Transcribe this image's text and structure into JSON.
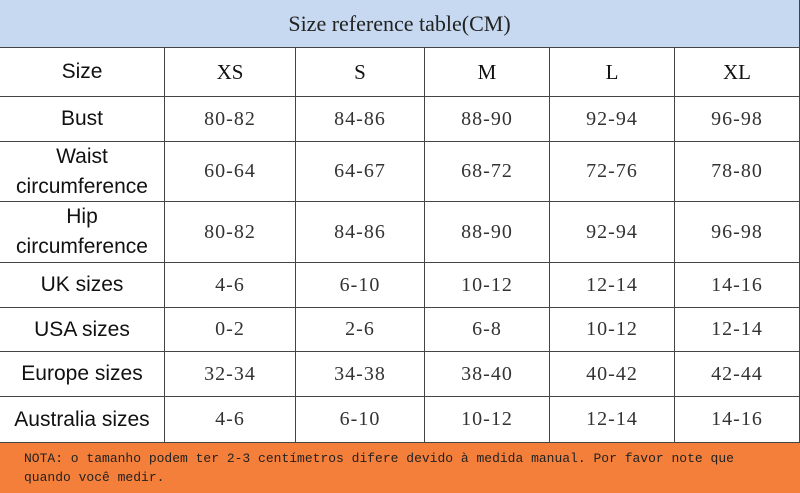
{
  "title": "Size reference table(CM)",
  "header": [
    "Size",
    "XS",
    "S",
    "M",
    "L",
    "XL"
  ],
  "rows": [
    [
      "Bust",
      "80-82",
      "84-86",
      "88-90",
      "92-94",
      "96-98"
    ],
    [
      "Waist circumference",
      "60-64",
      "64-67",
      "68-72",
      "72-76",
      "78-80"
    ],
    [
      "Hip circumference",
      "80-82",
      "84-86",
      "88-90",
      "92-94",
      "96-98"
    ],
    [
      "UK sizes",
      "4-6",
      "6-10",
      "10-12",
      "12-14",
      "14-16"
    ],
    [
      "USA sizes",
      "0-2",
      "2-6",
      "6-8",
      "10-12",
      "12-14"
    ],
    [
      "Europe sizes",
      "32-34",
      "34-38",
      "38-40",
      "40-42",
      "42-44"
    ],
    [
      "Australia sizes",
      "4-6",
      "6-10",
      "10-12",
      "12-14",
      "14-16"
    ]
  ],
  "note": "NOTA: o tamanho podem ter 2-3 centímetros difere devido à medida manual. Por favor note que quando você medir."
}
